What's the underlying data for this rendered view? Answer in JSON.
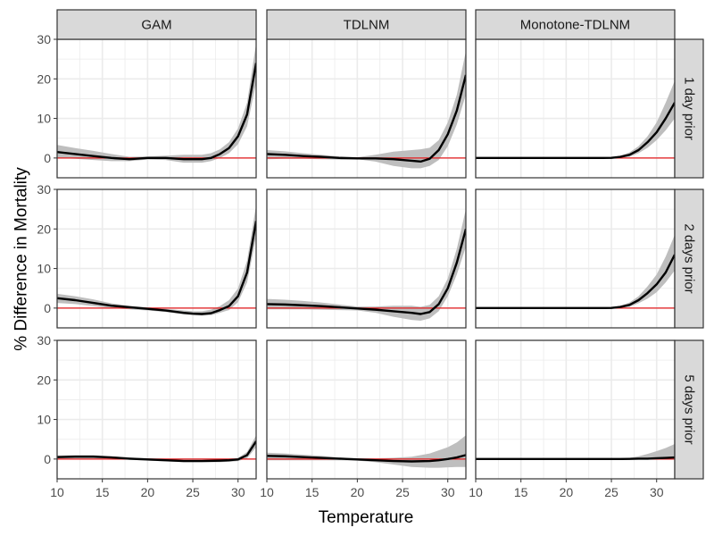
{
  "chart_data": {
    "type": "line",
    "xlabel": "Temperature",
    "ylabel": "% Difference in Mortality",
    "xlim": [
      10,
      32
    ],
    "ylim": [
      -5,
      30
    ],
    "x_ticks": [
      10,
      15,
      20,
      25,
      30
    ],
    "y_ticks": [
      0,
      10,
      20,
      30
    ],
    "column_labels": [
      "GAM",
      "TDLNM",
      "Monotone-TDLNM"
    ],
    "row_labels": [
      "1 day prior",
      "2 days prior",
      "5 days prior"
    ],
    "reference_line": {
      "y": 0,
      "color": "#e41a1c"
    },
    "grid": true,
    "colors": {
      "line": "#000000",
      "band": "#bebebe",
      "strip_fill": "#d9d9d9",
      "panel_border": "#333333",
      "grid": "#ebebeb"
    },
    "panels": [
      {
        "row": 0,
        "col": 0,
        "x": [
          10,
          12,
          14,
          16,
          18,
          20,
          22,
          24,
          26,
          27,
          28,
          29,
          30,
          31,
          32
        ],
        "y": [
          1.5,
          1.0,
          0.5,
          0.0,
          -0.3,
          0.0,
          0.0,
          -0.3,
          -0.3,
          0.0,
          1.0,
          2.5,
          5.5,
          11.0,
          24.0
        ],
        "lower": [
          0.0,
          -0.2,
          -0.5,
          -0.8,
          -0.8,
          -0.4,
          -0.5,
          -1.2,
          -1.2,
          -0.8,
          0.0,
          1.2,
          3.5,
          8.0,
          19.0
        ],
        "upper": [
          3.3,
          2.5,
          1.8,
          1.0,
          0.3,
          0.4,
          0.6,
          0.8,
          0.8,
          1.2,
          2.2,
          4.0,
          7.5,
          14.0,
          29.0
        ]
      },
      {
        "row": 0,
        "col": 1,
        "x": [
          10,
          12,
          14,
          16,
          18,
          20,
          22,
          24,
          26,
          27,
          28,
          29,
          30,
          31,
          32
        ],
        "y": [
          1.0,
          0.8,
          0.5,
          0.3,
          0.0,
          -0.1,
          -0.1,
          -0.3,
          -0.7,
          -0.9,
          -0.2,
          2.0,
          6.0,
          12.0,
          21.0
        ],
        "lower": [
          -0.3,
          -0.2,
          -0.2,
          -0.3,
          -0.4,
          -0.3,
          -0.9,
          -2.0,
          -2.6,
          -2.6,
          -2.0,
          -0.5,
          3.0,
          8.5,
          16.0
        ],
        "upper": [
          2.0,
          1.7,
          1.2,
          0.8,
          0.4,
          0.2,
          0.8,
          1.6,
          2.0,
          2.2,
          2.6,
          4.5,
          9.0,
          16.0,
          27.0
        ]
      },
      {
        "row": 0,
        "col": 2,
        "x": [
          10,
          12,
          14,
          16,
          18,
          20,
          22,
          24,
          25,
          26,
          27,
          28,
          29,
          30,
          31,
          32
        ],
        "y": [
          0,
          0,
          0,
          0,
          0,
          0,
          0,
          0,
          0.05,
          0.3,
          0.8,
          2.0,
          4.0,
          6.5,
          10.0,
          14.0
        ],
        "lower": [
          0,
          0,
          0,
          0,
          0,
          0,
          0,
          0,
          0.0,
          0.1,
          0.3,
          1.2,
          2.6,
          4.5,
          7.0,
          10.0
        ],
        "upper": [
          0,
          0,
          0,
          0,
          0,
          0,
          0,
          0,
          0.15,
          0.6,
          1.4,
          3.0,
          5.5,
          9.0,
          14.0,
          19.5
        ]
      },
      {
        "row": 1,
        "col": 0,
        "x": [
          10,
          12,
          14,
          16,
          18,
          20,
          22,
          24,
          25,
          26,
          27,
          28,
          29,
          30,
          31,
          32
        ],
        "y": [
          2.5,
          2.0,
          1.3,
          0.6,
          0.2,
          -0.2,
          -0.6,
          -1.2,
          -1.4,
          -1.5,
          -1.3,
          -0.5,
          0.5,
          3.0,
          9.0,
          22.0
        ],
        "lower": [
          1.3,
          1.0,
          0.5,
          0.0,
          -0.3,
          -0.6,
          -1.0,
          -1.6,
          -1.8,
          -1.9,
          -1.8,
          -1.2,
          -0.5,
          1.5,
          6.5,
          18.0
        ],
        "upper": [
          3.6,
          3.0,
          2.2,
          1.2,
          0.6,
          0.2,
          -0.2,
          -0.6,
          -0.8,
          -0.8,
          -0.4,
          0.5,
          2.0,
          5.0,
          12.0,
          26.0
        ]
      },
      {
        "row": 1,
        "col": 1,
        "x": [
          10,
          12,
          14,
          16,
          18,
          20,
          22,
          24,
          26,
          27,
          28,
          29,
          30,
          31,
          32
        ],
        "y": [
          1.0,
          0.9,
          0.7,
          0.5,
          0.2,
          -0.1,
          -0.4,
          -0.8,
          -1.2,
          -1.5,
          -1.0,
          1.0,
          5.0,
          11.5,
          20.0
        ],
        "lower": [
          -0.3,
          -0.3,
          -0.3,
          -0.4,
          -0.5,
          -0.6,
          -1.2,
          -2.2,
          -3.0,
          -3.2,
          -2.6,
          -0.8,
          3.0,
          8.5,
          15.5
        ],
        "upper": [
          2.3,
          2.1,
          1.8,
          1.4,
          0.9,
          0.4,
          0.4,
          0.6,
          0.6,
          0.3,
          0.8,
          3.0,
          7.5,
          15.0,
          25.0
        ]
      },
      {
        "row": 1,
        "col": 2,
        "x": [
          10,
          12,
          14,
          16,
          18,
          20,
          22,
          24,
          25,
          26,
          27,
          28,
          29,
          30,
          31,
          32
        ],
        "y": [
          0,
          0,
          0,
          0,
          0,
          0,
          0,
          0,
          0.05,
          0.3,
          0.8,
          2.0,
          3.8,
          6.0,
          9.0,
          13.5
        ],
        "lower": [
          0,
          0,
          0,
          0,
          0,
          0,
          0,
          0,
          0.0,
          0.1,
          0.3,
          1.2,
          2.4,
          4.0,
          6.5,
          9.5
        ],
        "upper": [
          0,
          0,
          0,
          0,
          0,
          0,
          0,
          0,
          0.15,
          0.6,
          1.4,
          3.0,
          5.5,
          8.5,
          13.0,
          18.5
        ]
      },
      {
        "row": 2,
        "col": 0,
        "x": [
          10,
          12,
          14,
          16,
          18,
          20,
          22,
          24,
          26,
          28,
          29,
          30,
          31,
          32
        ],
        "y": [
          0.5,
          0.6,
          0.6,
          0.4,
          0.1,
          -0.1,
          -0.3,
          -0.5,
          -0.5,
          -0.4,
          -0.3,
          -0.1,
          1.0,
          4.5
        ],
        "lower": [
          0.1,
          0.2,
          0.2,
          0.1,
          -0.2,
          -0.4,
          -0.6,
          -0.8,
          -0.8,
          -0.8,
          -0.7,
          -0.5,
          0.2,
          3.0
        ],
        "upper": [
          0.9,
          1.0,
          1.0,
          0.7,
          0.4,
          0.2,
          0.0,
          -0.2,
          -0.2,
          0.0,
          0.1,
          0.3,
          1.8,
          6.0
        ]
      },
      {
        "row": 2,
        "col": 1,
        "x": [
          10,
          12,
          14,
          16,
          18,
          20,
          22,
          24,
          26,
          28,
          29,
          30,
          31,
          32
        ],
        "y": [
          0.8,
          0.7,
          0.5,
          0.3,
          0.1,
          -0.1,
          -0.3,
          -0.5,
          -0.6,
          -0.5,
          -0.3,
          0.0,
          0.4,
          1.0
        ],
        "lower": [
          -0.3,
          -0.3,
          -0.3,
          -0.3,
          -0.3,
          -0.4,
          -0.8,
          -1.4,
          -2.0,
          -2.2,
          -2.2,
          -2.1,
          -2.0,
          -2.0
        ],
        "upper": [
          1.6,
          1.4,
          1.1,
          0.8,
          0.4,
          0.2,
          0.2,
          0.3,
          0.6,
          1.4,
          2.2,
          3.0,
          4.2,
          6.0
        ]
      },
      {
        "row": 2,
        "col": 2,
        "x": [
          10,
          12,
          14,
          16,
          18,
          20,
          22,
          24,
          26,
          27,
          28,
          29,
          30,
          31,
          32
        ],
        "y": [
          0,
          0,
          0,
          0,
          0,
          0,
          0,
          0,
          0,
          0.05,
          0.1,
          0.1,
          0.2,
          0.3,
          0.4
        ],
        "lower": [
          0,
          0,
          0,
          0,
          0,
          0,
          0,
          0,
          0,
          0.0,
          -0.1,
          -0.1,
          -0.1,
          -0.1,
          -0.1
        ],
        "upper": [
          0,
          0,
          0,
          0,
          0,
          0,
          0,
          0,
          0.05,
          0.3,
          0.7,
          1.3,
          2.0,
          2.8,
          3.8
        ]
      }
    ]
  }
}
